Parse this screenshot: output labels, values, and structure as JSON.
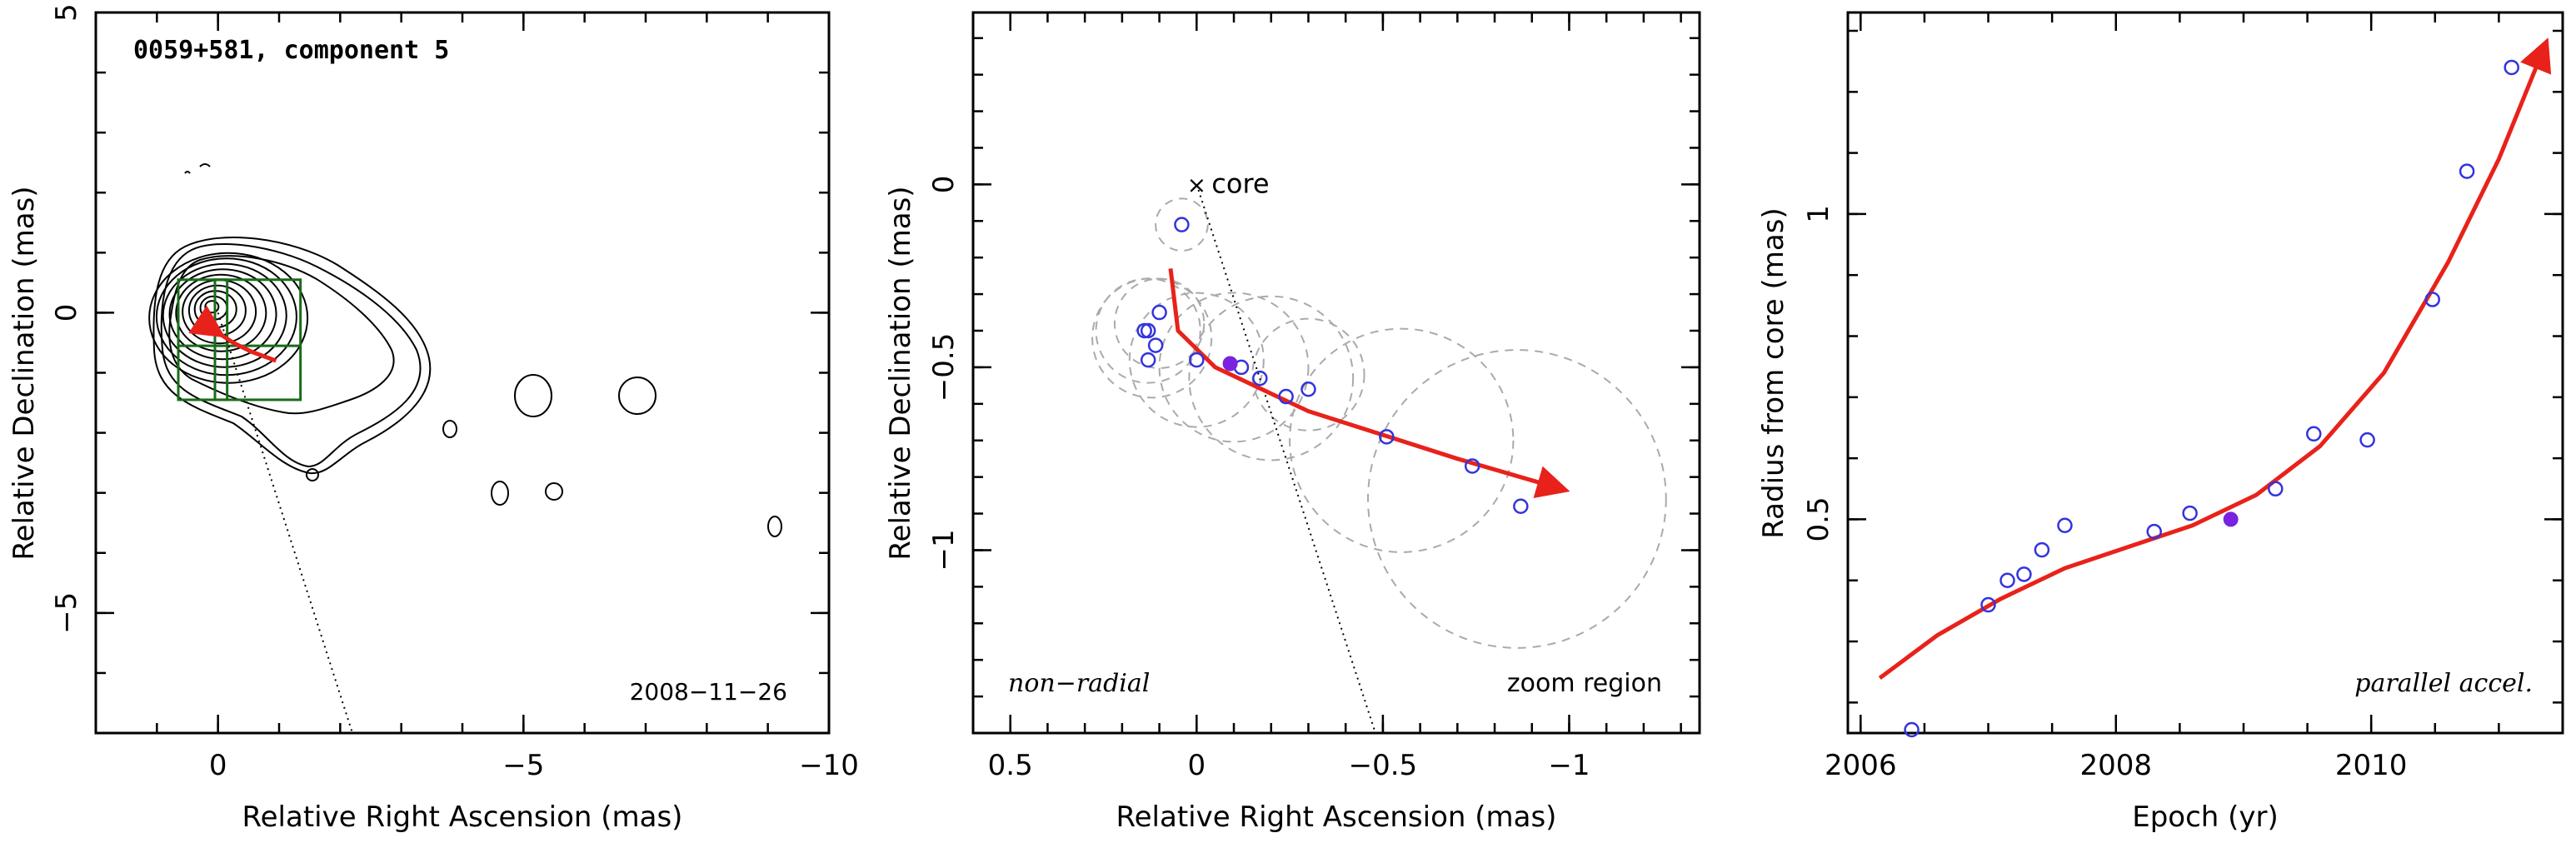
{
  "colors": {
    "trajectory": "#e8221a",
    "open_point": "#3333dd",
    "filled_point": "#7a22e0",
    "ellipse": "#aaaaaa",
    "zoom_box": "#1a6b1a"
  },
  "chart_data": [
    {
      "type": "contour-map",
      "title": "0059+581, component 5",
      "xlabel": "Relative Right Ascension (mas)",
      "ylabel": "Relative Declination (mas)",
      "xlim": [
        2,
        -10
      ],
      "ylim": [
        -7,
        5
      ],
      "xticks": [
        0,
        -5,
        -10
      ],
      "xtick_labels": [
        "0",
        "−5",
        "−10"
      ],
      "yticks": [
        5,
        0,
        -5
      ],
      "ytick_labels": [
        "5",
        "0",
        "−5"
      ],
      "date_label": "2008−11−26",
      "core_direction_line": [
        [
          0,
          0
        ],
        [
          -2.2,
          -7
        ]
      ],
      "trajectory": [
        [
          0.05,
          -0.3
        ],
        [
          -0.25,
          -0.5
        ],
        [
          -0.55,
          -0.65
        ],
        [
          -0.95,
          -0.8
        ]
      ]
    },
    {
      "type": "scatter",
      "xlabel": "Relative Right Ascension (mas)",
      "ylabel": "Relative Declination (mas)",
      "xlim": [
        0.6,
        -1.35
      ],
      "ylim": [
        -1.5,
        0.47
      ],
      "xticks": [
        0.5,
        0,
        -0.5,
        -1
      ],
      "xtick_labels": [
        "0.5",
        "0",
        "−0.5",
        "−1"
      ],
      "yticks": [
        0,
        -0.5,
        -1
      ],
      "ytick_labels": [
        "0",
        "−0.5",
        "−1"
      ],
      "core_label": "core",
      "left_annotation": "non−radial",
      "right_annotation": "zoom region",
      "points_open": [
        [
          0.04,
          -0.11
        ],
        [
          0.14,
          -0.4
        ],
        [
          0.13,
          -0.4
        ],
        [
          0.1,
          -0.35
        ],
        [
          0.11,
          -0.44
        ],
        [
          0.13,
          -0.48
        ],
        [
          0.0,
          -0.48
        ],
        [
          -0.12,
          -0.5
        ],
        [
          -0.17,
          -0.53
        ],
        [
          -0.24,
          -0.58
        ],
        [
          -0.3,
          -0.56
        ],
        [
          -0.51,
          -0.69
        ],
        [
          -0.74,
          -0.77
        ],
        [
          -0.87,
          -0.88
        ]
      ],
      "point_filled": [
        -0.09,
        -0.49
      ],
      "ellipses": [
        {
          "x": 0.04,
          "y": -0.11,
          "r": 0.07
        },
        {
          "x": 0.13,
          "y": -0.4,
          "r": 0.14
        },
        {
          "x": 0.12,
          "y": -0.42,
          "r": 0.16
        },
        {
          "x": 0.1,
          "y": -0.38,
          "r": 0.12
        },
        {
          "x": 0.0,
          "y": -0.48,
          "r": 0.18
        },
        {
          "x": -0.1,
          "y": -0.5,
          "r": 0.2
        },
        {
          "x": -0.2,
          "y": -0.53,
          "r": 0.22
        },
        {
          "x": -0.3,
          "y": -0.52,
          "r": 0.15
        },
        {
          "x": -0.55,
          "y": -0.7,
          "r": 0.3
        },
        {
          "x": -0.86,
          "y": -0.86,
          "r": 0.4
        }
      ],
      "core_direction_line": [
        [
          0,
          0
        ],
        [
          -0.48,
          -1.5
        ]
      ],
      "trajectory": [
        [
          0.07,
          -0.23
        ],
        [
          0.05,
          -0.4
        ],
        [
          -0.05,
          -0.5
        ],
        [
          -0.3,
          -0.62
        ],
        [
          -0.7,
          -0.75
        ],
        [
          -0.97,
          -0.83
        ]
      ]
    },
    {
      "type": "scatter",
      "xlabel": "Epoch (yr)",
      "ylabel": "Radius from core (mas)",
      "xlim": [
        2005.9,
        2011.5
      ],
      "ylim": [
        0.15,
        1.33
      ],
      "xticks": [
        2006,
        2008,
        2010
      ],
      "xtick_labels": [
        "2006",
        "2008",
        "2010"
      ],
      "yticks": [
        0.5,
        1
      ],
      "ytick_labels": [
        "0.5",
        "1"
      ],
      "annotation": "parallel accel.",
      "points_open": [
        [
          2006.4,
          0.14
        ],
        [
          2007.0,
          0.36
        ],
        [
          2007.15,
          0.4
        ],
        [
          2007.28,
          0.41
        ],
        [
          2007.42,
          0.45
        ],
        [
          2007.6,
          0.49
        ],
        [
          2008.3,
          0.48
        ],
        [
          2008.58,
          0.51
        ],
        [
          2009.25,
          0.55
        ],
        [
          2009.55,
          0.64
        ],
        [
          2009.97,
          0.63
        ],
        [
          2010.48,
          0.86
        ],
        [
          2010.75,
          1.07
        ],
        [
          2011.1,
          1.24
        ]
      ],
      "point_filled": [
        2008.9,
        0.5
      ],
      "trajectory": [
        [
          2006.15,
          0.24
        ],
        [
          2006.6,
          0.31
        ],
        [
          2007.1,
          0.37
        ],
        [
          2007.6,
          0.42
        ],
        [
          2008.1,
          0.455
        ],
        [
          2008.6,
          0.49
        ],
        [
          2009.1,
          0.54
        ],
        [
          2009.6,
          0.62
        ],
        [
          2010.1,
          0.74
        ],
        [
          2010.6,
          0.92
        ],
        [
          2011.0,
          1.09
        ],
        [
          2011.35,
          1.27
        ]
      ]
    }
  ]
}
